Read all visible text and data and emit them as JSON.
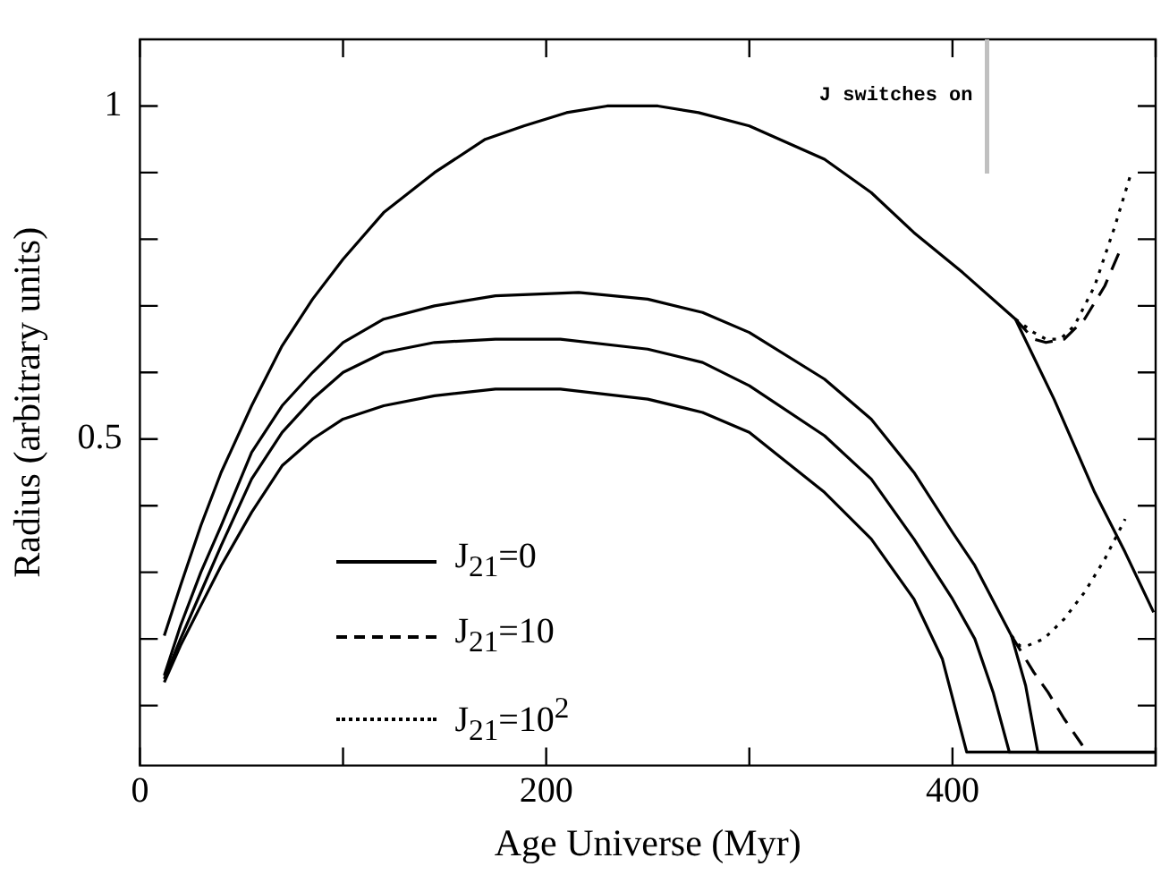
{
  "chart_data": {
    "type": "line",
    "xlabel": "Age Universe (Myr)",
    "ylabel": "Radius (arbitrary units)",
    "xlim": [
      0,
      500
    ],
    "ylim": [
      0.01,
      1.1
    ],
    "xticks": [
      0,
      {
        "value": 100,
        "label": null
      },
      200,
      {
        "value": 300,
        "label": null
      },
      400,
      {
        "value": 500,
        "label": null
      }
    ],
    "yticks": [
      {
        "value": 0.1,
        "label": null
      },
      {
        "value": 0.2,
        "label": null
      },
      {
        "value": 0.3,
        "label": null
      },
      {
        "value": 0.4,
        "label": null
      },
      0.5,
      {
        "value": 0.6,
        "label": null
      },
      {
        "value": 0.7,
        "label": null
      },
      {
        "value": 0.8,
        "label": null
      },
      {
        "value": 0.9,
        "label": null
      },
      1
    ],
    "grid": false,
    "legend": "bottom left",
    "marker": "none",
    "ref_lines": [
      {
        "axis": "x",
        "value": 417,
        "label": "J switches on",
        "color": "#c0c0c0"
      }
    ],
    "series": [
      {
        "name": "J$_{21}$=0",
        "color": "#000000",
        "line_style": "solid",
        "x": [
          12,
          20,
          30,
          40,
          55,
          70,
          85,
          100,
          120,
          145,
          170,
          189,
          210,
          230,
          255,
          275,
          300,
          337,
          360,
          381,
          405,
          431,
          450,
          470,
          485,
          499
        ],
        "values": [
          0.205,
          0.28,
          0.37,
          0.45,
          0.55,
          0.64,
          0.71,
          0.77,
          0.84,
          0.9,
          0.95,
          0.97,
          0.99,
          1.0,
          1.0,
          0.99,
          0.97,
          0.92,
          0.87,
          0.81,
          0.75,
          0.68,
          0.56,
          0.42,
          0.33,
          0.24
        ]
      },
      {
        "color": "#000000",
        "line_style": "solid",
        "x": [
          12,
          20,
          30,
          40,
          55,
          70,
          85,
          100,
          120,
          145,
          175,
          216,
          250,
          277,
          300,
          337,
          360,
          381,
          400,
          411,
          429,
          436,
          442,
          500
        ],
        "values": [
          0.145,
          0.22,
          0.3,
          0.37,
          0.48,
          0.55,
          0.6,
          0.645,
          0.68,
          0.7,
          0.715,
          0.72,
          0.71,
          0.69,
          0.66,
          0.59,
          0.53,
          0.45,
          0.36,
          0.31,
          0.205,
          0.13,
          0.03,
          0.03
        ]
      },
      {
        "color": "#000000",
        "line_style": "solid",
        "x": [
          12,
          20,
          30,
          40,
          55,
          70,
          85,
          100,
          120,
          145,
          175,
          207,
          250,
          277,
          300,
          337,
          360,
          381,
          400,
          411,
          420,
          428,
          500
        ],
        "values": [
          0.14,
          0.2,
          0.27,
          0.34,
          0.44,
          0.51,
          0.56,
          0.6,
          0.63,
          0.645,
          0.65,
          0.65,
          0.635,
          0.615,
          0.58,
          0.505,
          0.44,
          0.35,
          0.26,
          0.2,
          0.12,
          0.03,
          0.03
        ]
      },
      {
        "color": "#000000",
        "line_style": "solid",
        "x": [
          12,
          20,
          30,
          40,
          55,
          70,
          85,
          100,
          120,
          145,
          175,
          207,
          250,
          277,
          300,
          337,
          360,
          381,
          395,
          407,
          500
        ],
        "values": [
          0.135,
          0.19,
          0.25,
          0.31,
          0.39,
          0.46,
          0.5,
          0.53,
          0.55,
          0.565,
          0.575,
          0.575,
          0.56,
          0.54,
          0.51,
          0.42,
          0.35,
          0.26,
          0.17,
          0.03,
          0.03
        ]
      },
      {
        "name": "J$_{21}$=10",
        "color": "#000000",
        "line_style": "dashed",
        "x": [
          431,
          440,
          446,
          455,
          465,
          475,
          482
        ],
        "values": [
          0.68,
          0.65,
          0.645,
          0.65,
          0.68,
          0.73,
          0.78
        ]
      },
      {
        "color": "#000000",
        "line_style": "dashed",
        "x": [
          429,
          434,
          440,
          447,
          455,
          464
        ],
        "values": [
          0.205,
          0.18,
          0.15,
          0.12,
          0.08,
          0.04
        ]
      },
      {
        "name": "J$_{21}$=10$^{2}$",
        "color": "#000000",
        "line_style": "dotted",
        "x": [
          431,
          440,
          446,
          453,
          460,
          470,
          480,
          488
        ],
        "values": [
          0.68,
          0.66,
          0.65,
          0.65,
          0.67,
          0.73,
          0.82,
          0.9
        ]
      },
      {
        "color": "#000000",
        "line_style": "dotted",
        "x": [
          429,
          433,
          437,
          445,
          455,
          465,
          475,
          485
        ],
        "values": [
          0.205,
          0.19,
          0.19,
          0.2,
          0.23,
          0.27,
          0.32,
          0.38
        ]
      }
    ]
  }
}
